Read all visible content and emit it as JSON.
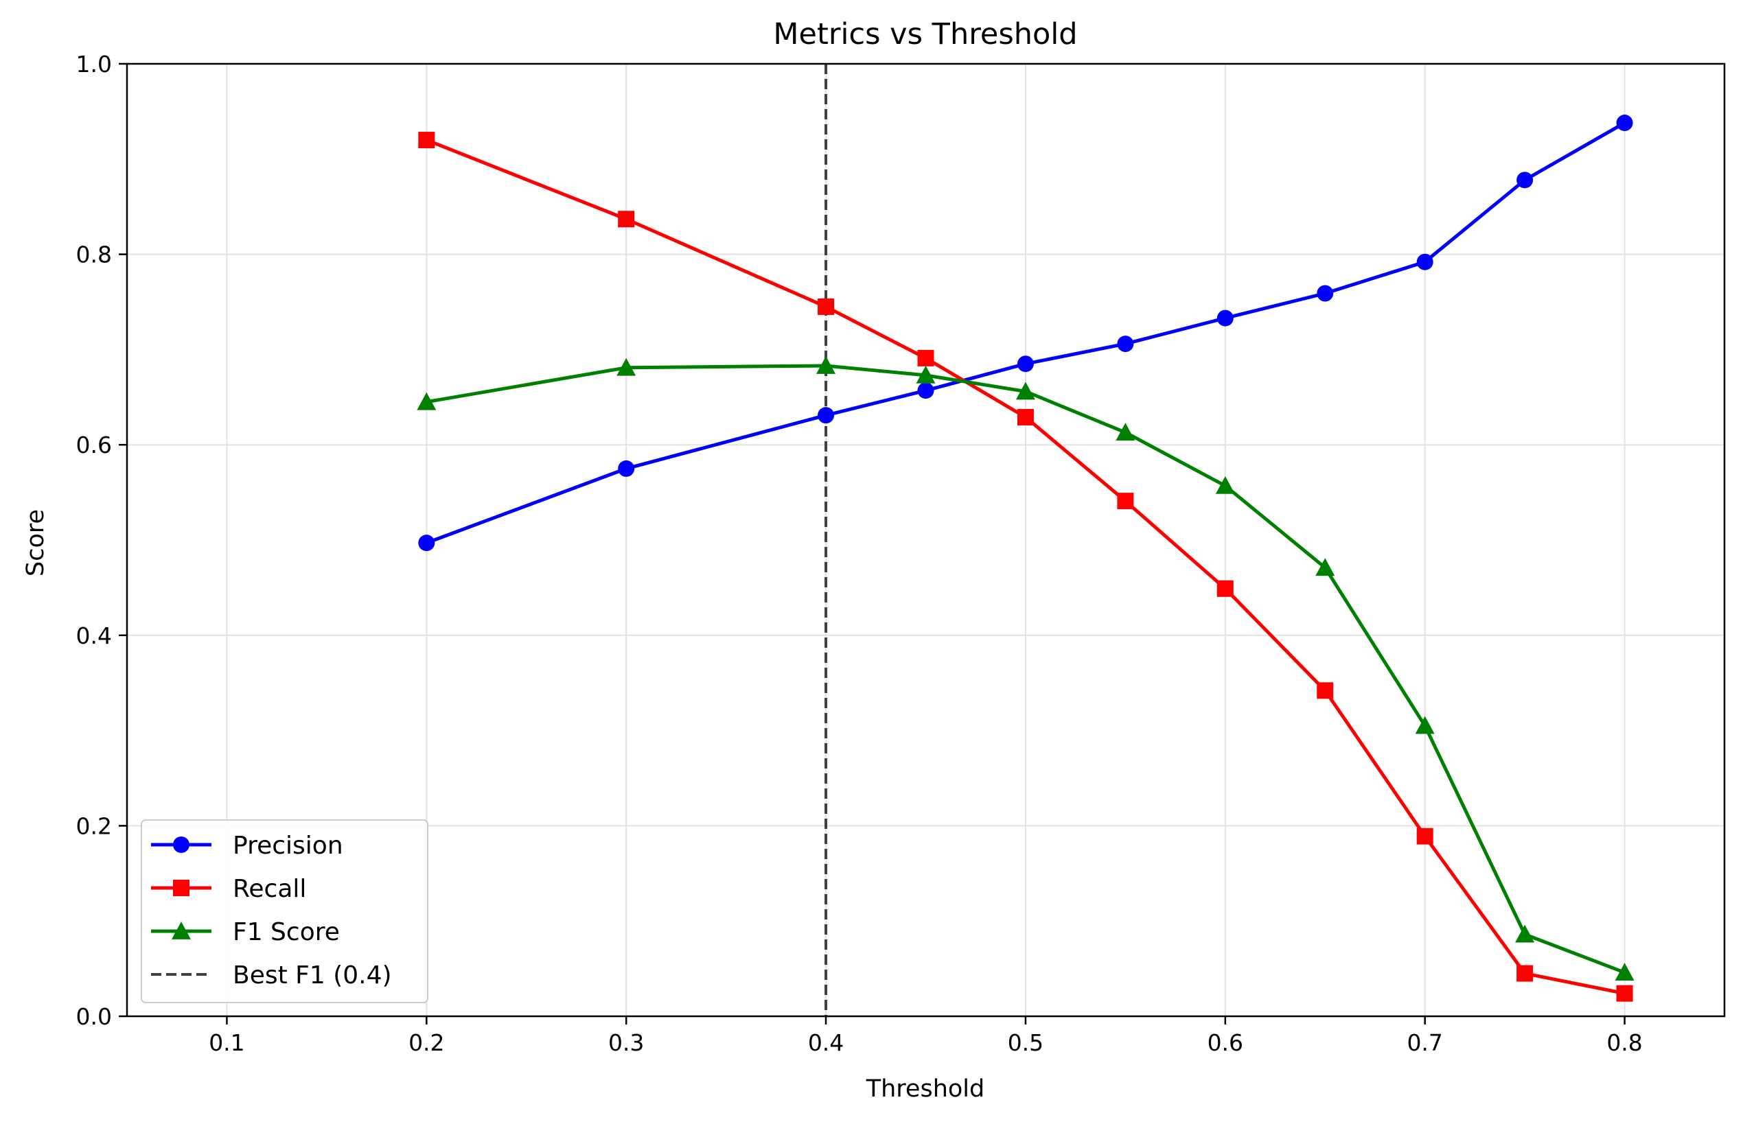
{
  "chart_data": {
    "type": "line",
    "title": "Metrics vs Threshold",
    "xlabel": "Threshold",
    "ylabel": "Score",
    "xlim": [
      0.05,
      0.85
    ],
    "ylim": [
      0.0,
      1.0
    ],
    "x_ticks": [
      0.1,
      0.2,
      0.3,
      0.4,
      0.5,
      0.6,
      0.7,
      0.8
    ],
    "x_tick_labels": [
      "0.1",
      "0.2",
      "0.3",
      "0.4",
      "0.5",
      "0.6",
      "0.7",
      "0.8"
    ],
    "y_ticks": [
      0.0,
      0.2,
      0.4,
      0.6,
      0.8,
      1.0
    ],
    "y_tick_labels": [
      "0.0",
      "0.2",
      "0.4",
      "0.6",
      "0.8",
      "1.0"
    ],
    "grid": true,
    "legend_position": "bottom-left",
    "x": [
      0.2,
      0.3,
      0.4,
      0.45,
      0.5,
      0.55,
      0.6,
      0.65,
      0.7,
      0.75,
      0.8
    ],
    "series": [
      {
        "name": "Precision",
        "color": "#0000ff",
        "marker": "circle",
        "values": [
          0.497,
          0.575,
          0.631,
          0.657,
          0.685,
          0.706,
          0.733,
          0.759,
          0.792,
          0.878,
          0.938
        ]
      },
      {
        "name": "Recall",
        "color": "#ff0000",
        "marker": "square",
        "values": [
          0.92,
          0.837,
          0.745,
          0.691,
          0.629,
          0.541,
          0.449,
          0.342,
          0.189,
          0.045,
          0.024
        ]
      },
      {
        "name": "F1 Score",
        "color": "#008000",
        "marker": "triangle",
        "values": [
          0.645,
          0.681,
          0.683,
          0.673,
          0.656,
          0.613,
          0.557,
          0.471,
          0.305,
          0.086,
          0.046
        ]
      }
    ],
    "reference_line": {
      "name": "Best F1 (0.4)",
      "x": 0.4,
      "color": "#404040",
      "style": "dashed"
    }
  }
}
